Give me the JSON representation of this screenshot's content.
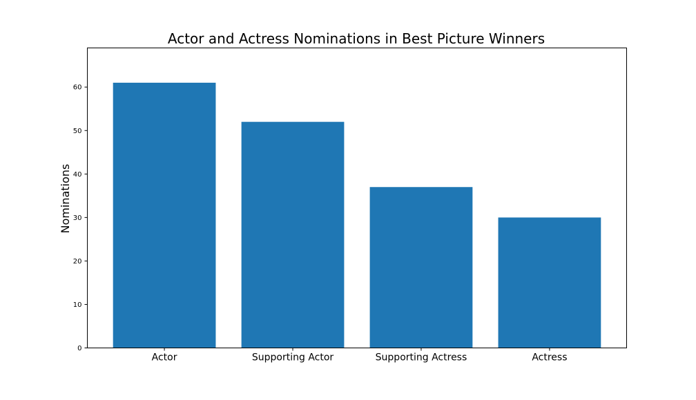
{
  "chart_data": {
    "type": "bar",
    "title": "Actor and Actress Nominations in Best Picture Winners",
    "xlabel": "",
    "ylabel": "Nominations",
    "categories": [
      "Actor",
      "Supporting Actor",
      "Supporting Actress",
      "Actress"
    ],
    "values": [
      61,
      52,
      37,
      30
    ],
    "ylim": [
      0,
      69
    ],
    "yticks": [
      0,
      10,
      20,
      30,
      40,
      50,
      60
    ],
    "grid": false,
    "legend": "none",
    "bar_color": "#1f77b4"
  }
}
